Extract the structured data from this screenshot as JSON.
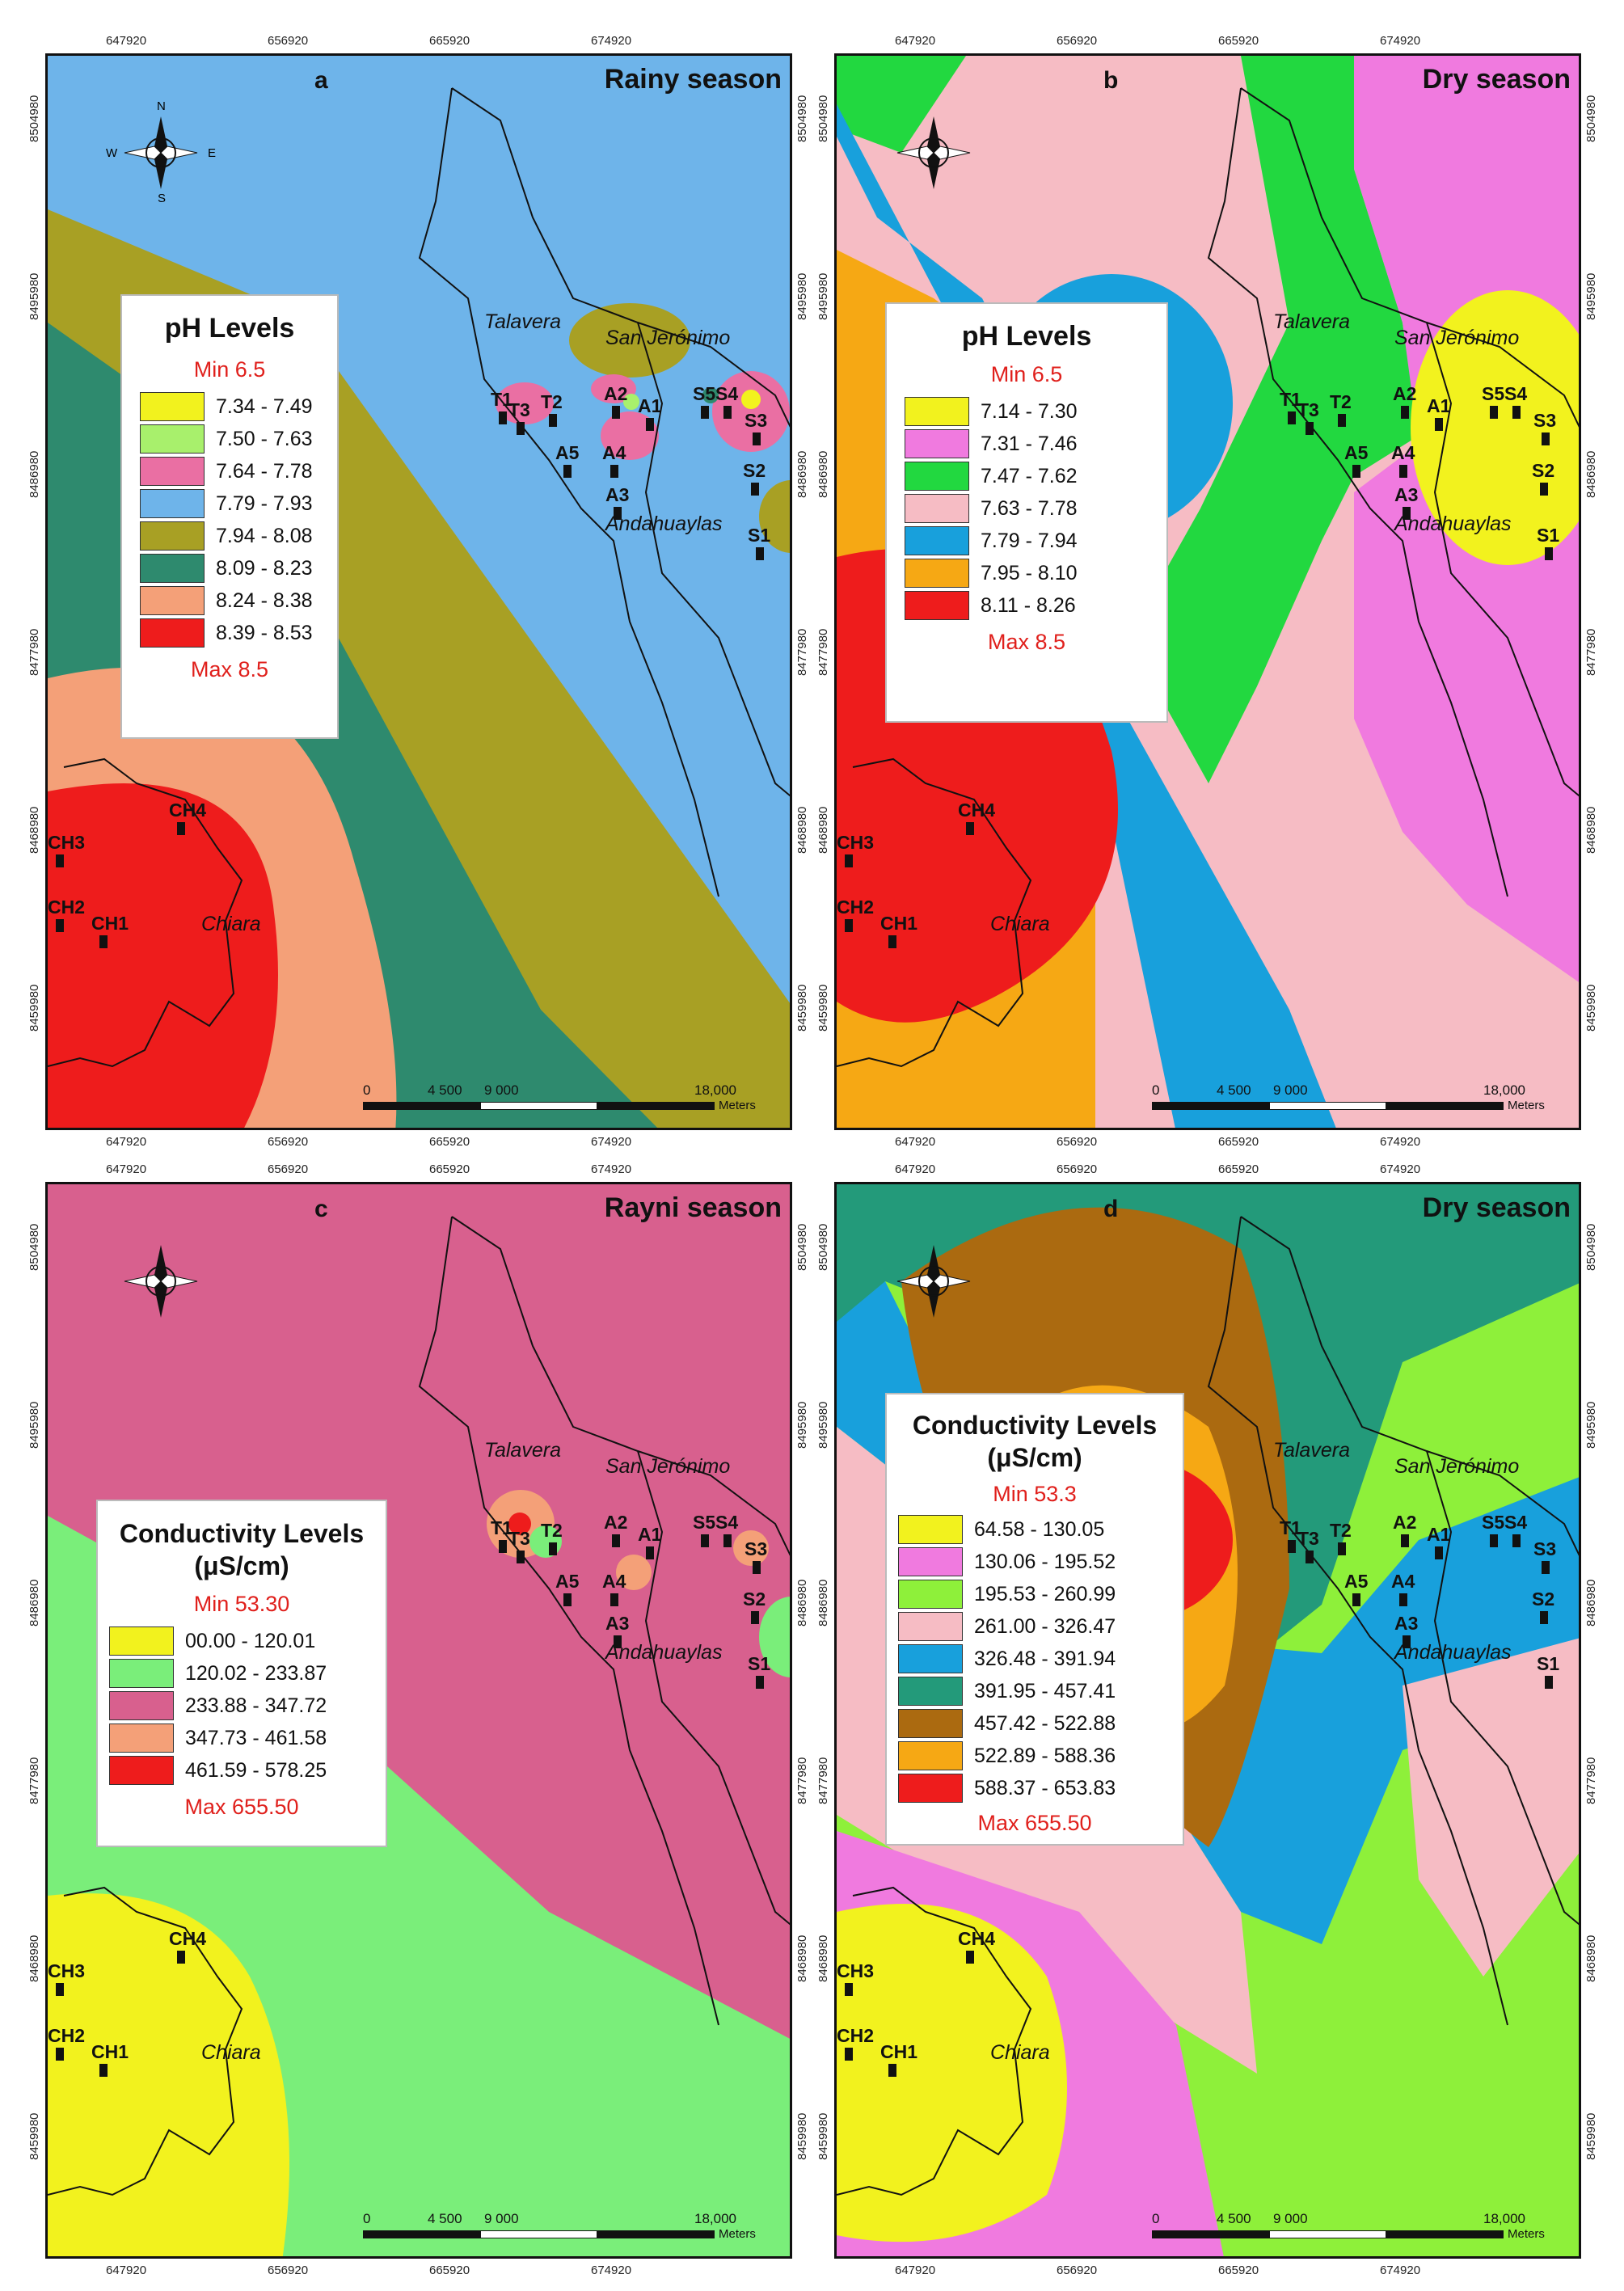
{
  "x_ticks": [
    "647920",
    "656920",
    "665920",
    "674920"
  ],
  "y_ticks": [
    "8504980",
    "8495980",
    "8486980",
    "8477980",
    "8468980",
    "8459980"
  ],
  "compass": {
    "n": "N",
    "s": "S",
    "e": "E",
    "w": "W"
  },
  "scale": {
    "labels": [
      "0",
      "4 500",
      "9 000",
      "18,000"
    ],
    "unit": "Meters"
  },
  "places": {
    "talavera": "Talavera",
    "san_jeronimo": "San Jerónimo",
    "andahuaylas": "Andahuaylas",
    "chiara": "Chiara"
  },
  "colors": {
    "background": "#ffffff",
    "border": "#111111",
    "legend_min_max": "#e0201c"
  },
  "panels": [
    {
      "letter": "a",
      "season": "Rainy season",
      "legend": {
        "title": "pH Levels",
        "min": "Min  6.5",
        "max": "Max 8.5",
        "items": [
          {
            "label": "7.34 - 7.49",
            "color": "#f2f21e"
          },
          {
            "label": "7.50 - 7.63",
            "color": "#a8f06c"
          },
          {
            "label": "7.64 - 7.78",
            "color": "#ea6fa3"
          },
          {
            "label": "7.79 - 7.93",
            "color": "#6eb4ea"
          },
          {
            "label": "7.94 - 8.08",
            "color": "#a8a024"
          },
          {
            "label": "8.09 - 8.23",
            "color": "#2e8a6e"
          },
          {
            "label": "8.24 - 8.38",
            "color": "#f4a078"
          },
          {
            "label": "8.39 - 8.53",
            "color": "#ee1c1c"
          }
        ]
      }
    },
    {
      "letter": "b",
      "season": "Dry season",
      "legend": {
        "title": "pH Levels",
        "min": "Min  6.5",
        "max": "Max 8.5",
        "items": [
          {
            "label": "7.14 - 7.30",
            "color": "#f2f21e"
          },
          {
            "label": "7.31 - 7.46",
            "color": "#f07adf"
          },
          {
            "label": "7.47 - 7.62",
            "color": "#22d840"
          },
          {
            "label": "7.63 - 7.78",
            "color": "#f6bcc4"
          },
          {
            "label": "7.79 - 7.94",
            "color": "#18a0dc"
          },
          {
            "label": "7.95 - 8.10",
            "color": "#f6a814"
          },
          {
            "label": "8.11 - 8.26",
            "color": "#ee1c1c"
          }
        ]
      }
    },
    {
      "letter": "c",
      "season": "Rayni season",
      "legend": {
        "title": "Conductivity Levels (μS/cm)",
        "min": "Min  53.30",
        "max": "Max 655.50",
        "items": [
          {
            "label": "00.00 - 120.01",
            "color": "#f2f21e"
          },
          {
            "label": "120.02 - 233.87",
            "color": "#7aee7a"
          },
          {
            "label": "233.88 - 347.72",
            "color": "#d8608e"
          },
          {
            "label": "347.73 - 461.58",
            "color": "#f4a078"
          },
          {
            "label": "461.59 - 578.25",
            "color": "#ee1c1c"
          }
        ]
      }
    },
    {
      "letter": "d",
      "season": "Dry season",
      "legend": {
        "title": "Conductivity Levels (μS/cm)",
        "min": "Min  53.3",
        "max": "Max 655.50",
        "items": [
          {
            "label": "64.58 - 130.05",
            "color": "#f2f21e"
          },
          {
            "label": "130.06 - 195.52",
            "color": "#f07adf"
          },
          {
            "label": "195.53 - 260.99",
            "color": "#8ef03a"
          },
          {
            "label": "261.00 - 326.47",
            "color": "#f6bcc4"
          },
          {
            "label": "326.48 - 391.94",
            "color": "#18a0dc"
          },
          {
            "label": "391.95 - 457.41",
            "color": "#239a7a"
          },
          {
            "label": "457.42 - 522.88",
            "color": "#ab6a10"
          },
          {
            "label": "522.89 - 588.36",
            "color": "#f6a814"
          },
          {
            "label": "588.37 - 653.83",
            "color": "#ee1c1c"
          }
        ]
      }
    }
  ],
  "sites": [
    "T1",
    "T3",
    "T2",
    "A2",
    "A1",
    "S5",
    "S4",
    "A5",
    "A4",
    "S3",
    "A3",
    "S2",
    "S1",
    "CH4",
    "CH3",
    "CH2",
    "CH1"
  ]
}
